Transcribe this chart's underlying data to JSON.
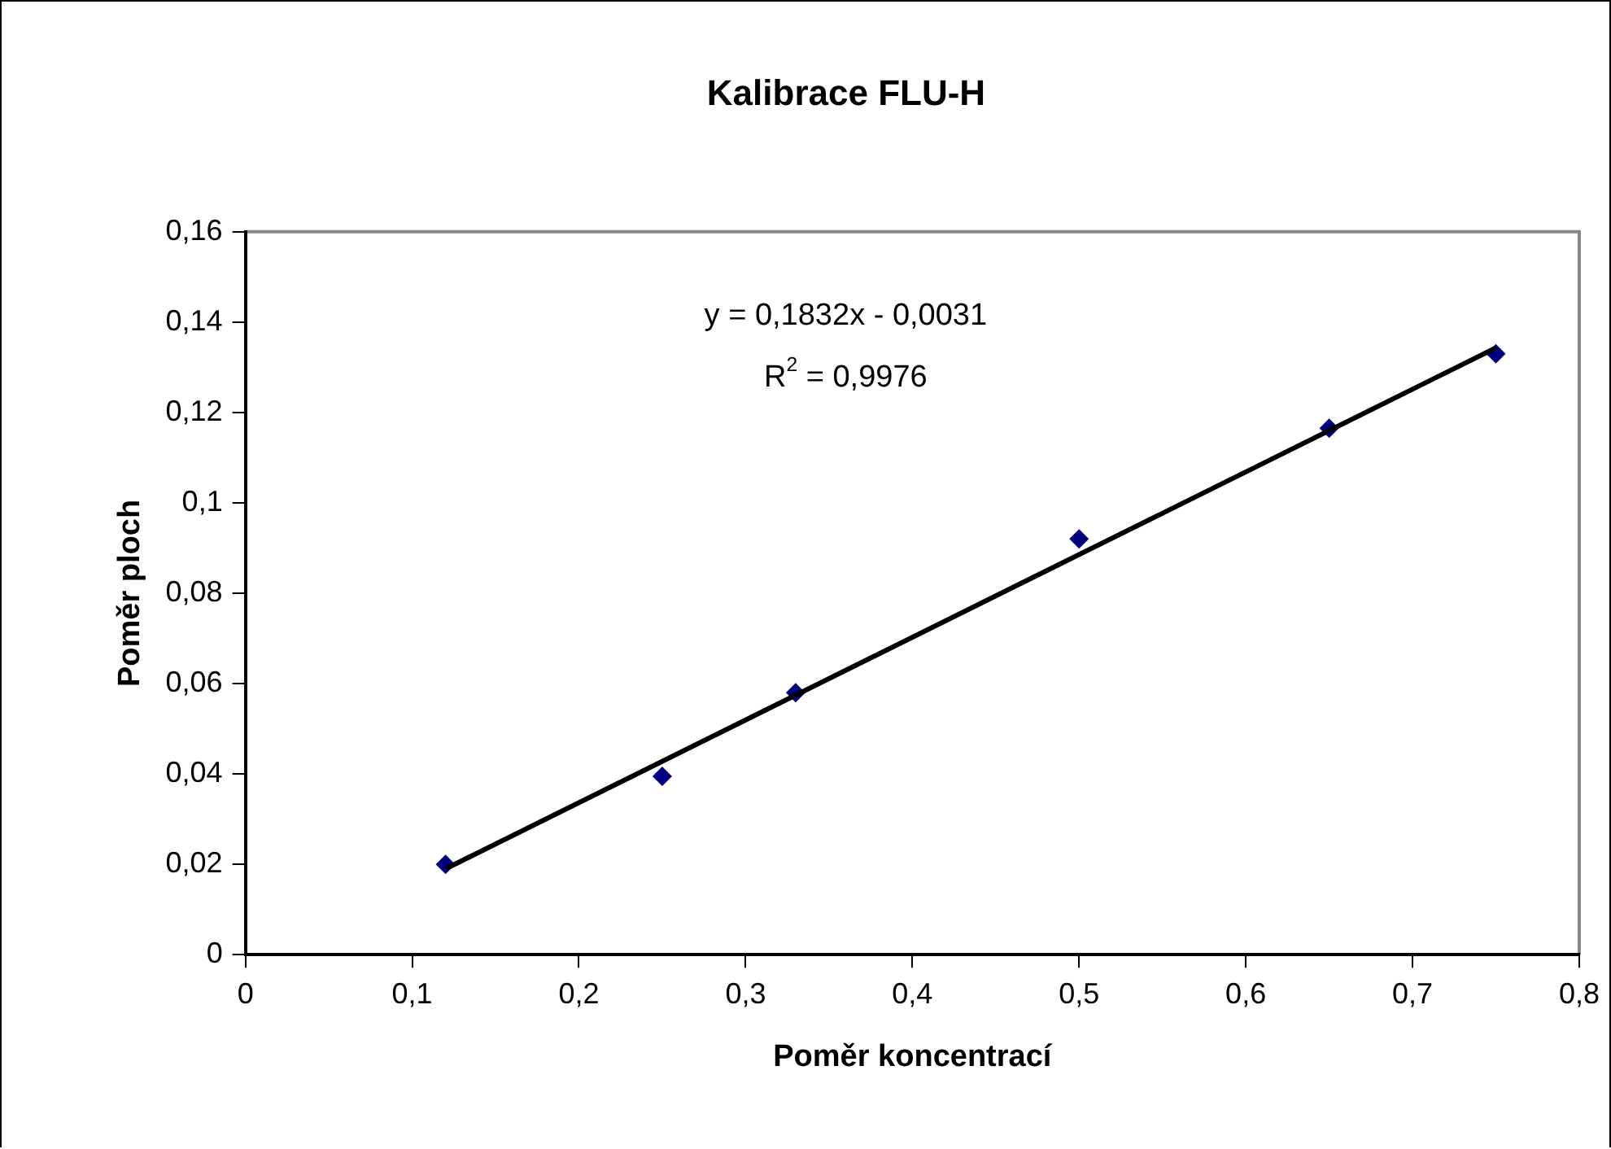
{
  "chart_data": {
    "type": "scatter",
    "title": "Kalibrace FLU-H",
    "xlabel": "Poměr koncentrací",
    "ylabel": "Poměr ploch",
    "x": [
      0.12,
      0.25,
      0.33,
      0.5,
      0.65,
      0.75
    ],
    "series": [
      {
        "color": "#000080",
        "values": [
          0.02,
          0.0395,
          0.058,
          0.092,
          0.1165,
          0.133
        ],
        "marker": "diamond"
      },
      {
        "type": "line",
        "color": "#000000",
        "x": [
          0.12,
          0.75
        ],
        "values": [
          0.019,
          0.1343
        ],
        "marker": "none",
        "line_style": "solid"
      }
    ],
    "xlim": [
      0,
      0.8
    ],
    "xticks": [
      0,
      {
        "value": 0.1,
        "label": "0,1"
      },
      {
        "value": 0.2,
        "label": "0,2"
      },
      {
        "value": 0.3,
        "label": "0,3"
      },
      {
        "value": 0.4,
        "label": "0,4"
      },
      {
        "value": 0.5,
        "label": "0,5"
      },
      {
        "value": 0.6,
        "label": "0,6"
      },
      {
        "value": 0.7,
        "label": "0,7"
      },
      {
        "value": 0.8,
        "label": "0,8"
      }
    ],
    "ylim": [
      0,
      0.16
    ],
    "yticks": [
      0,
      {
        "value": 0.02,
        "label": "0,02"
      },
      {
        "value": 0.04,
        "label": "0,04"
      },
      {
        "value": 0.06,
        "label": "0,06"
      },
      {
        "value": 0.08,
        "label": "0,08"
      },
      {
        "value": 0.1,
        "label": "0,1"
      },
      {
        "value": 0.12,
        "label": "0,12"
      },
      {
        "value": 0.14,
        "label": "0,14"
      },
      {
        "value": 0.16,
        "label": "0,16"
      }
    ],
    "grid": false,
    "legend": false,
    "annotations": [
      "y = 0,1832x - 0,0031",
      "R$^{2}$ = 0,9976"
    ]
  }
}
